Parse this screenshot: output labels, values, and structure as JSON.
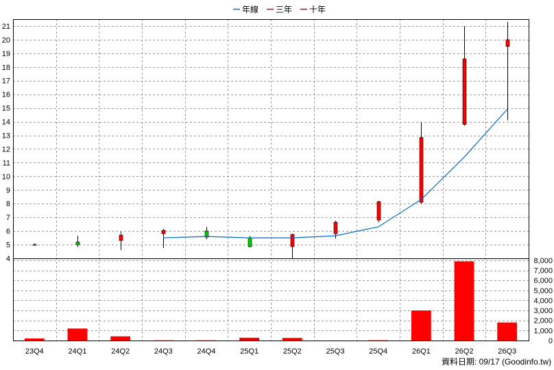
{
  "chart_data": {
    "type": "candlestick+bar",
    "legend": {
      "placement": "top-center",
      "items": [
        {
          "label": "年線",
          "color": "#0066cc"
        },
        {
          "label": "三年",
          "color": "#cc0000"
        },
        {
          "label": "十年",
          "color": "#990066"
        }
      ]
    },
    "categories": [
      "23Q4",
      "24Q1",
      "24Q2",
      "24Q3",
      "24Q4",
      "25Q1",
      "25Q2",
      "25Q3",
      "25Q4",
      "26Q1",
      "26Q2",
      "26Q3"
    ],
    "price_axis": {
      "range": [
        4,
        21.5
      ],
      "ticks": [
        "4",
        "5",
        "6",
        "7",
        "8",
        "9",
        "10",
        "11",
        "12",
        "13",
        "14",
        "15",
        "16",
        "17",
        "18",
        "19",
        "20",
        "21"
      ],
      "tick_values": [
        4,
        5,
        6,
        7,
        8,
        9,
        10,
        11,
        12,
        13,
        14,
        15,
        16,
        17,
        18,
        19,
        20,
        21
      ]
    },
    "volume_axis": {
      "range": [
        0,
        8200
      ],
      "ticks": [
        "0",
        "1,000",
        "2,000",
        "3,000",
        "4,000",
        "5,000",
        "6,000",
        "7,000",
        "8,000"
      ],
      "tick_values": [
        0,
        1000,
        2000,
        3000,
        4000,
        5000,
        6000,
        7000,
        8000
      ]
    },
    "candles": [
      {
        "open": 5.02,
        "close": 5.0,
        "high": 5.08,
        "low": 4.98
      },
      {
        "open": 5.2,
        "close": 5.0,
        "high": 5.65,
        "low": 4.82
      },
      {
        "open": 5.3,
        "close": 5.7,
        "high": 5.95,
        "low": 4.6
      },
      {
        "open": 5.8,
        "close": 6.05,
        "high": 6.15,
        "low": 4.75
      },
      {
        "open": 6.0,
        "close": 5.55,
        "high": 6.3,
        "low": 5.4
      },
      {
        "open": 5.5,
        "close": 4.85,
        "high": 5.65,
        "low": 4.8
      },
      {
        "open": 4.85,
        "close": 5.75,
        "high": 5.8,
        "low": 3.95
      },
      {
        "open": 5.8,
        "close": 6.65,
        "high": 6.75,
        "low": 5.45
      },
      {
        "open": 6.8,
        "close": 8.15,
        "high": 8.2,
        "low": 6.65
      },
      {
        "open": 8.1,
        "close": 12.85,
        "high": 13.95,
        "low": 8.0
      },
      {
        "open": 13.8,
        "close": 18.6,
        "high": 21.0,
        "low": 13.7
      },
      {
        "open": 19.5,
        "close": 20.0,
        "high": 21.3,
        "low": 14.1
      }
    ],
    "series": [
      {
        "name": "年線",
        "color": "#0066cc",
        "values": [
          null,
          null,
          null,
          5.5,
          5.6,
          5.5,
          5.5,
          5.65,
          6.3,
          8.3,
          11.4,
          14.9
        ]
      }
    ],
    "volume": [
      210,
      1200,
      420,
      20,
      20,
      280,
      260,
      5,
      30,
      3000,
      7900,
      1800
    ],
    "grid": true,
    "up_color": "#ff0000",
    "down_color": "#00cc00",
    "volume_color": "#ff0000"
  },
  "footer": {
    "source_note": "資料日期: 09/17  (Goodinfo.tw)"
  }
}
